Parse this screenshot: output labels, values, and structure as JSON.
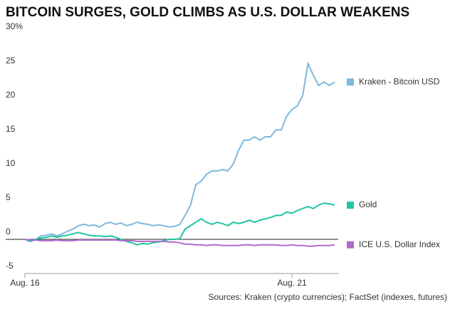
{
  "chart_data": {
    "type": "line",
    "title": "BITCOIN SURGES, GOLD CLIMBS AS U.S. DOLLAR WEAKENS",
    "source": "Sources: Kraken (crypto currencies); FactSet (indexes, futures)",
    "categories": [
      "Aug. 16",
      null,
      null,
      null,
      null,
      null,
      null,
      null,
      null,
      null,
      null,
      null,
      null,
      null,
      null,
      null,
      null,
      null,
      null,
      null,
      null,
      null,
      null,
      null,
      null,
      null,
      null,
      null,
      null,
      null,
      null,
      null,
      null,
      null,
      null,
      null,
      null,
      null,
      null,
      null,
      null,
      null,
      null,
      null,
      null,
      null,
      null,
      null,
      null,
      null,
      "Aug. 21",
      null,
      null,
      null,
      null,
      null,
      null,
      null,
      null
    ],
    "series": [
      {
        "name": "Kraken - Bitcoin USD",
        "color": "#7db8de",
        "values": [
          0,
          -0.3,
          0,
          0.5,
          0.6,
          0.8,
          0.5,
          0.8,
          1.2,
          1.5,
          2,
          2.2,
          2,
          2.1,
          1.8,
          2.3,
          2.5,
          2.2,
          2.4,
          2,
          2.2,
          2.5,
          2.3,
          2.2,
          2,
          2.1,
          2,
          1.8,
          1.9,
          2.2,
          3.5,
          5,
          8,
          8.5,
          9.5,
          10,
          10,
          10.2,
          10,
          11,
          13,
          14.5,
          14.5,
          15,
          14.5,
          15,
          15,
          16,
          16,
          18,
          19,
          19.5,
          21,
          25.7,
          24,
          22.5,
          23,
          22.5,
          23
        ]
      },
      {
        "name": "Gold",
        "color": "#1ec6a2",
        "values": [
          0,
          -0.3,
          0,
          0.2,
          0.3,
          0.5,
          0.3,
          0.5,
          0.6,
          0.8,
          1,
          0.8,
          0.6,
          0.5,
          0.5,
          0.4,
          0.5,
          0.3,
          0,
          -0.3,
          -0.5,
          -0.8,
          -0.6,
          -0.7,
          -0.5,
          -0.4,
          -0.2,
          0,
          0,
          0.1,
          1.5,
          2,
          2.5,
          3,
          2.5,
          2.2,
          2.5,
          2.3,
          2,
          2.5,
          2.3,
          2.5,
          2.8,
          2.5,
          2.8,
          3,
          3.2,
          3.5,
          3.5,
          4,
          3.8,
          4.2,
          4.5,
          4.8,
          4.5,
          5,
          5.3,
          5.2,
          5
        ]
      },
      {
        "name": "ICE U.S. Dollar Index",
        "color": "#b06cc8",
        "values": [
          0,
          -0.1,
          -0.1,
          -0.2,
          -0.2,
          -0.2,
          -0.1,
          -0.2,
          -0.2,
          -0.2,
          -0.1,
          -0.1,
          -0.1,
          -0.1,
          -0.1,
          -0.1,
          -0.1,
          -0.1,
          -0.2,
          -0.2,
          -0.2,
          -0.3,
          -0.3,
          -0.3,
          -0.3,
          -0.3,
          -0.3,
          -0.4,
          -0.4,
          -0.5,
          -0.7,
          -0.7,
          -0.8,
          -0.8,
          -0.9,
          -0.8,
          -0.8,
          -0.9,
          -0.9,
          -0.9,
          -0.9,
          -0.8,
          -0.8,
          -0.9,
          -0.8,
          -0.8,
          -0.8,
          -0.8,
          -0.9,
          -0.9,
          -0.8,
          -0.9,
          -0.9,
          -1,
          -1,
          -0.9,
          -0.9,
          -0.9,
          -0.8
        ]
      }
    ],
    "ylim": [
      -5,
      30
    ],
    "yticks": [
      {
        "value": 30,
        "label": "30%"
      },
      25,
      20,
      15,
      10,
      5,
      0,
      -5
    ]
  }
}
